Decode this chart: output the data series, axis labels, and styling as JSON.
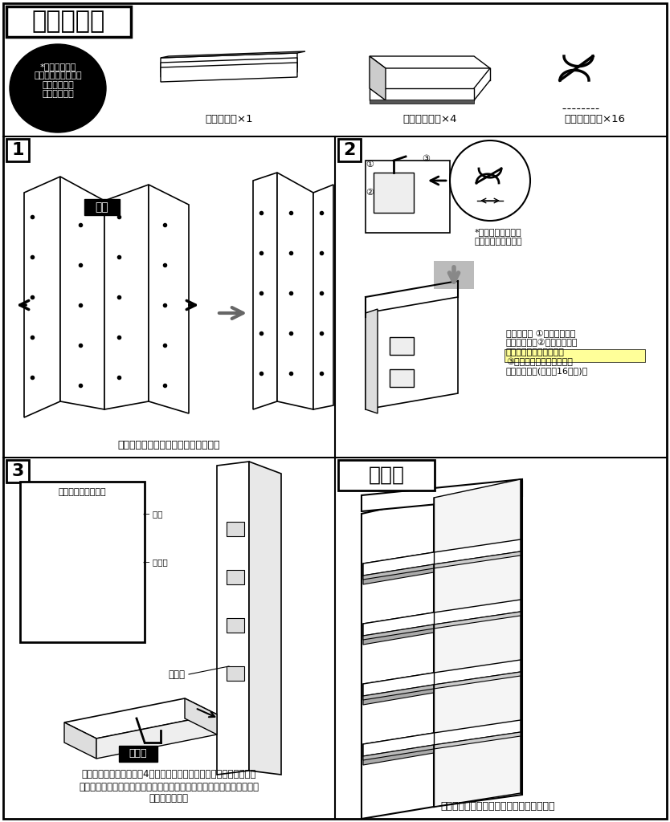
{
  "bg_color": "#ffffff",
  "border_color": "#000000",
  "title_header": "セット内容",
  "note_text": "*段ボールには\n表・裏があります。\n「木目柄」が\n「表」です。",
  "item1_label": "本体・・・×1",
  "item2_label": "トレー・・・×4",
  "item3_label": "フック・・・×16",
  "step1_num": "1",
  "step1_caption": "図のように本体をコの字に広げます。",
  "step1_body_label": "本体",
  "step2_num": "2",
  "step2_note": "*必ず幅の広い方を\n本体に差し込みます",
  "step2_desc": "図のように ①本体四角窓を\n手前に開き、②フックの溝が\n広い方を差し込みます。\n③窓を閉めてフックを固定\nしてください(左右全16箇所)。",
  "step3_num": "3",
  "step3_inset_title": "（正面から見た図）",
  "step3_label_honbody": "本体",
  "step3_label_tray": "トレー",
  "step3_label_hook": "フック",
  "step3_tray_label": "トレー",
  "step3_caption": "図のようにトレーの底穴4箇所を本体に取り付けたフックにそれぞれ\nしっかりと差し込んでください。トレーは下から順に取り付けると作業\nしやすいです。",
  "final_num": "完成図",
  "final_caption": "水平な場所に設置の上、ご使用ください。",
  "line_color": "#000000",
  "gray_color": "#808080",
  "light_gray": "#cccccc",
  "dark_color": "#1a1a1a",
  "highlight_yellow": "#ffff00"
}
